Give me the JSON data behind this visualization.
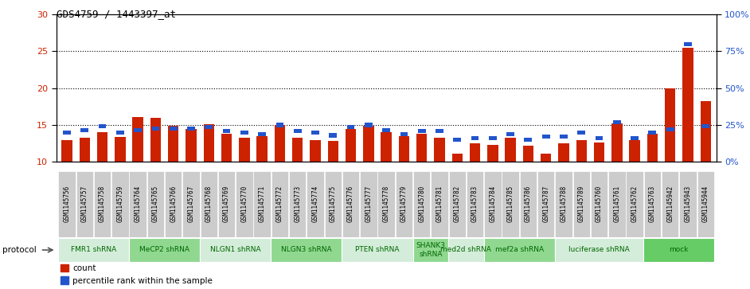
{
  "title": "GDS4759 / 1443397_at",
  "samples": [
    "GSM1145756",
    "GSM1145757",
    "GSM1145758",
    "GSM1145759",
    "GSM1145764",
    "GSM1145765",
    "GSM1145766",
    "GSM1145767",
    "GSM1145768",
    "GSM1145769",
    "GSM1145770",
    "GSM1145771",
    "GSM1145772",
    "GSM1145773",
    "GSM1145774",
    "GSM1145775",
    "GSM1145776",
    "GSM1145777",
    "GSM1145778",
    "GSM1145779",
    "GSM1145780",
    "GSM1145781",
    "GSM1145782",
    "GSM1145783",
    "GSM1145784",
    "GSM1145785",
    "GSM1145786",
    "GSM1145787",
    "GSM1145788",
    "GSM1145789",
    "GSM1145760",
    "GSM1145761",
    "GSM1145762",
    "GSM1145763",
    "GSM1145942",
    "GSM1145943",
    "GSM1145944"
  ],
  "red_values": [
    13.0,
    13.3,
    14.0,
    13.4,
    16.1,
    16.0,
    14.9,
    14.5,
    15.1,
    13.8,
    13.3,
    13.5,
    15.0,
    13.3,
    13.0,
    12.8,
    14.5,
    14.9,
    14.0,
    13.5,
    13.8,
    13.3,
    11.1,
    12.5,
    12.3,
    13.3,
    12.2,
    11.1,
    12.5,
    13.0,
    12.6,
    15.2,
    13.0,
    13.8,
    20.0,
    25.5,
    18.2
  ],
  "blue_values": [
    14.0,
    14.3,
    14.8,
    14.0,
    14.3,
    14.5,
    14.5,
    14.5,
    14.7,
    14.2,
    14.0,
    13.8,
    15.0,
    14.2,
    14.0,
    13.6,
    14.7,
    15.0,
    14.3,
    13.8,
    14.2,
    14.2,
    13.0,
    13.2,
    13.2,
    13.8,
    13.0,
    13.4,
    13.4,
    14.0,
    13.2,
    15.4,
    13.2,
    14.0,
    14.4,
    26.0,
    14.8
  ],
  "protocols": [
    {
      "label": "FMR1 shRNA",
      "start": 0,
      "end": 4,
      "color": "#d4edda"
    },
    {
      "label": "MeCP2 shRNA",
      "start": 4,
      "end": 8,
      "color": "#90d890"
    },
    {
      "label": "NLGN1 shRNA",
      "start": 8,
      "end": 12,
      "color": "#d4edda"
    },
    {
      "label": "NLGN3 shRNA",
      "start": 12,
      "end": 16,
      "color": "#90d890"
    },
    {
      "label": "PTEN shRNA",
      "start": 16,
      "end": 20,
      "color": "#d4edda"
    },
    {
      "label": "SHANK3\nshRNA",
      "start": 20,
      "end": 22,
      "color": "#90d890"
    },
    {
      "label": "med2d shRNA",
      "start": 22,
      "end": 24,
      "color": "#d4edda"
    },
    {
      "label": "mef2a shRNA",
      "start": 24,
      "end": 28,
      "color": "#90d890"
    },
    {
      "label": "luciferase shRNA",
      "start": 28,
      "end": 33,
      "color": "#d4edda"
    },
    {
      "label": "mock",
      "start": 33,
      "end": 37,
      "color": "#66cc66"
    }
  ],
  "ylim_left": [
    10,
    30
  ],
  "ylim_right": [
    0,
    100
  ],
  "yticks_left": [
    10,
    15,
    20,
    25,
    30
  ],
  "yticks_right": [
    0,
    25,
    50,
    75,
    100
  ],
  "bar_color": "#cc2200",
  "blue_color": "#2255cc",
  "sample_bg": "#cccccc",
  "plot_bg": "#ffffff",
  "dotted_lines": [
    15,
    20,
    25
  ]
}
